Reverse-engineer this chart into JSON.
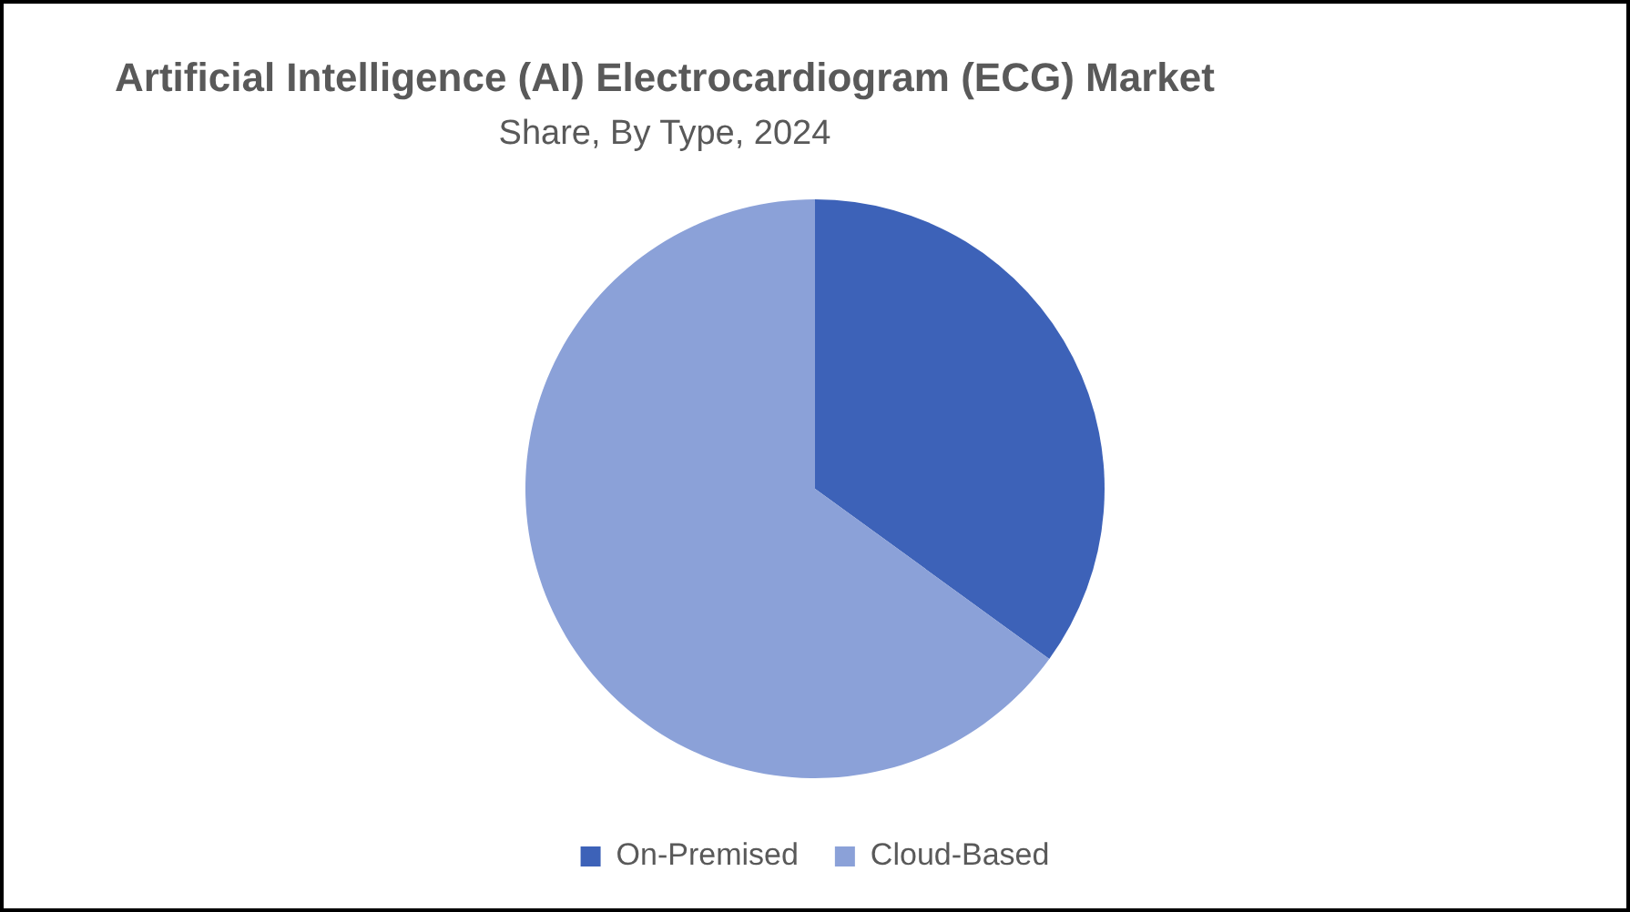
{
  "chart_data": {
    "type": "pie",
    "title": "Artificial Intelligence (AI) Electrocardiogram (ECG) Market",
    "subtitle": "Share, By Type, 2024",
    "categories": [
      "On-Premised",
      "Cloud-Based"
    ],
    "values": [
      35,
      65
    ],
    "colors": [
      "#3d62b8",
      "#8ba1d8"
    ],
    "legend": "bottom"
  }
}
